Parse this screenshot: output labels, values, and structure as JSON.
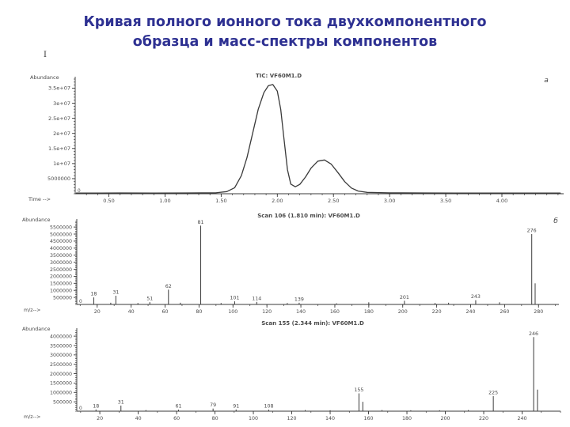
{
  "slide": {
    "title_line1": "Кривая полного ионного тока двухкомпонентного",
    "title_line2": "образца и масс-спектры компонентов",
    "title_color": "#2e3192",
    "stray_mark": "I"
  },
  "chart_data": [
    {
      "type": "line",
      "name": "total-ion-current",
      "title": "TIC: VF60M1.D",
      "panel_label": "a",
      "ylabel": "Abundance",
      "xlabel": "Time -->",
      "origin_label": "0",
      "xlim": [
        0.2,
        4.55
      ],
      "ylim": [
        0,
        38000000
      ],
      "grid": false,
      "xticks": [
        0.5,
        1.0,
        1.5,
        2.0,
        2.5,
        3.0,
        3.5,
        4.0
      ],
      "xtick_labels": [
        "0.50",
        "1.00",
        "1.50",
        "2.00",
        "2.50",
        "3.00",
        "3.50",
        "4.00"
      ],
      "yticks": [
        5000000,
        10000000,
        15000000,
        20000000,
        25000000,
        30000000,
        35000000
      ],
      "ytick_labels": [
        "5000000",
        "1e+07",
        "1.5e+07",
        "2e+07",
        "2.5e+07",
        "3e+07",
        "3.5e+07"
      ],
      "points": [
        [
          0.21,
          200000
        ],
        [
          0.4,
          200000
        ],
        [
          0.6,
          250000
        ],
        [
          0.9,
          200000
        ],
        [
          1.2,
          250000
        ],
        [
          1.45,
          300000
        ],
        [
          1.55,
          700000
        ],
        [
          1.62,
          2000000
        ],
        [
          1.68,
          6000000
        ],
        [
          1.73,
          12000000
        ],
        [
          1.78,
          20000000
        ],
        [
          1.83,
          28000000
        ],
        [
          1.88,
          33500000
        ],
        [
          1.92,
          35800000
        ],
        [
          1.96,
          36200000
        ],
        [
          2.0,
          34000000
        ],
        [
          2.03,
          28000000
        ],
        [
          2.06,
          18000000
        ],
        [
          2.09,
          8000000
        ],
        [
          2.12,
          3200000
        ],
        [
          2.16,
          2300000
        ],
        [
          2.2,
          3100000
        ],
        [
          2.25,
          5500000
        ],
        [
          2.3,
          8500000
        ],
        [
          2.36,
          10800000
        ],
        [
          2.42,
          11200000
        ],
        [
          2.48,
          9800000
        ],
        [
          2.54,
          7000000
        ],
        [
          2.6,
          4000000
        ],
        [
          2.66,
          1900000
        ],
        [
          2.72,
          900000
        ],
        [
          2.8,
          450000
        ],
        [
          3.0,
          300000
        ],
        [
          3.3,
          250000
        ],
        [
          3.6,
          220000
        ],
        [
          4.0,
          200000
        ],
        [
          4.3,
          200000
        ],
        [
          4.52,
          200000
        ]
      ],
      "peak_times_min": [
        1.94,
        2.4
      ]
    },
    {
      "type": "stick",
      "name": "mass-spectrum-component-1",
      "title": "Scan 106 (1.810 min): VF60M1.D",
      "panel_label": "б",
      "ylabel": "Abundance",
      "xlabel": "m/z-->",
      "origin_label": "0",
      "xlim": [
        8,
        292
      ],
      "ylim": [
        0,
        5900000
      ],
      "grid": false,
      "xticks": [
        20,
        40,
        60,
        80,
        100,
        120,
        140,
        160,
        180,
        200,
        220,
        240,
        260,
        280
      ],
      "xtick_labels": [
        "20",
        "40",
        "60",
        "80",
        "100",
        "120",
        "140",
        "160",
        "180",
        "200",
        "220",
        "240",
        "260",
        "280"
      ],
      "yticks": [
        500000,
        1000000,
        1500000,
        2000000,
        2500000,
        3000000,
        3500000,
        4000000,
        4500000,
        5000000,
        5500000
      ],
      "ytick_labels": [
        "500000",
        "1000000",
        "1500000",
        "2000000",
        "2500000",
        "3000000",
        "3500000",
        "4000000",
        "4500000",
        "5000000",
        "5500000"
      ],
      "peaks": [
        {
          "mz": 18,
          "abundance": 500000,
          "label": "18"
        },
        {
          "mz": 28,
          "abundance": 120000
        },
        {
          "mz": 31,
          "abundance": 620000,
          "label": "31"
        },
        {
          "mz": 44,
          "abundance": 100000
        },
        {
          "mz": 51,
          "abundance": 160000,
          "label": "51"
        },
        {
          "mz": 62,
          "abundance": 1050000,
          "label": "62"
        },
        {
          "mz": 69,
          "abundance": 120000
        },
        {
          "mz": 81,
          "abundance": 5600000,
          "label": "81"
        },
        {
          "mz": 93,
          "abundance": 100000
        },
        {
          "mz": 101,
          "abundance": 220000,
          "label": "101"
        },
        {
          "mz": 114,
          "abundance": 180000,
          "label": "114"
        },
        {
          "mz": 132,
          "abundance": 100000
        },
        {
          "mz": 139,
          "abundance": 120000,
          "label": "139"
        },
        {
          "mz": 161,
          "abundance": 80000
        },
        {
          "mz": 180,
          "abundance": 150000
        },
        {
          "mz": 201,
          "abundance": 260000,
          "label": "201"
        },
        {
          "mz": 219,
          "abundance": 100000
        },
        {
          "mz": 227,
          "abundance": 120000
        },
        {
          "mz": 243,
          "abundance": 300000,
          "label": "243"
        },
        {
          "mz": 257,
          "abundance": 150000
        },
        {
          "mz": 276,
          "abundance": 5000000,
          "label": "276"
        },
        {
          "mz": 278,
          "abundance": 1500000
        }
      ]
    },
    {
      "type": "stick",
      "name": "mass-spectrum-component-2",
      "title": "Scan 155 (2.344 min): VF60M1.D",
      "panel_label": "",
      "ylabel": "Abundance",
      "xlabel": "m/z-->",
      "origin_label": "0",
      "xlim": [
        8,
        260
      ],
      "ylim": [
        0,
        4300000
      ],
      "grid": false,
      "xticks": [
        20,
        40,
        60,
        80,
        100,
        120,
        140,
        160,
        180,
        200,
        220,
        240
      ],
      "xtick_labels": [
        "20",
        "40",
        "60",
        "80",
        "100",
        "120",
        "140",
        "160",
        "180",
        "200",
        "220",
        "240"
      ],
      "yticks": [
        500000,
        1000000,
        1500000,
        2000000,
        2500000,
        3000000,
        3500000,
        4000000
      ],
      "ytick_labels": [
        "500000",
        "1000000",
        "1500000",
        "2000000",
        "2500000",
        "3000000",
        "3500000",
        "4000000"
      ],
      "peaks": [
        {
          "mz": 18,
          "abundance": 90000,
          "label": "18"
        },
        {
          "mz": 31,
          "abundance": 300000,
          "label": "31"
        },
        {
          "mz": 44,
          "abundance": 60000
        },
        {
          "mz": 61,
          "abundance": 80000,
          "label": "61"
        },
        {
          "mz": 79,
          "abundance": 140000,
          "label": "79"
        },
        {
          "mz": 91,
          "abundance": 90000,
          "label": "91"
        },
        {
          "mz": 108,
          "abundance": 80000,
          "label": "108"
        },
        {
          "mz": 127,
          "abundance": 60000
        },
        {
          "mz": 140,
          "abundance": 50000
        },
        {
          "mz": 155,
          "abundance": 950000,
          "label": "155"
        },
        {
          "mz": 157,
          "abundance": 500000
        },
        {
          "mz": 167,
          "abundance": 60000
        },
        {
          "mz": 182,
          "abundance": 50000
        },
        {
          "mz": 197,
          "abundance": 50000
        },
        {
          "mz": 212,
          "abundance": 60000
        },
        {
          "mz": 225,
          "abundance": 800000,
          "label": "225"
        },
        {
          "mz": 246,
          "abundance": 3950000,
          "label": "246"
        },
        {
          "mz": 248,
          "abundance": 1150000
        }
      ]
    }
  ]
}
